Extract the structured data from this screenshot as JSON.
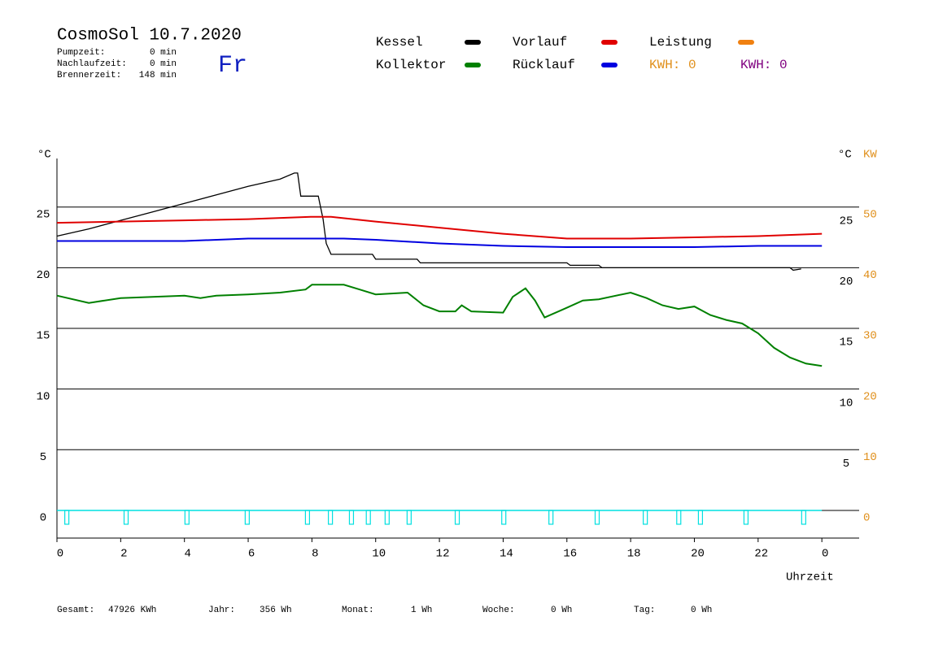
{
  "header": {
    "title": "CosmoSol 10.7.2020",
    "day": "Fr",
    "stats": [
      {
        "label": "Pumpzeit:",
        "value": "0 min"
      },
      {
        "label": "Nachlaufzeit:",
        "value": "0 min"
      },
      {
        "label": "Brennerzeit:",
        "value": "148 min"
      }
    ]
  },
  "chart_data": {
    "type": "line",
    "series": [
      {
        "name": "Kessel",
        "color": "#000000",
        "x": [
          0,
          1,
          2,
          3,
          4,
          5,
          6,
          7,
          7.45,
          7.55,
          7.65,
          8.2,
          8.35,
          8.45,
          8.6,
          9.9,
          10.0,
          11.3,
          11.4,
          16.0,
          16.1,
          17.0,
          17.1,
          23.0,
          23.1,
          23.35
        ],
        "values": [
          22.6,
          23.2,
          23.9,
          24.6,
          25.3,
          26.0,
          26.7,
          27.3,
          27.8,
          27.8,
          25.9,
          25.9,
          24.0,
          22.0,
          21.1,
          21.1,
          20.7,
          20.7,
          20.4,
          20.4,
          20.2,
          20.2,
          20.0,
          20.0,
          19.8,
          19.9
        ]
      },
      {
        "name": "Kollektor",
        "color": "#008000",
        "x": [
          0,
          1,
          2,
          3,
          4,
          4.5,
          5,
          6,
          7,
          7.8,
          8,
          9,
          9.5,
          10,
          11,
          11.5,
          12,
          12.5,
          12.7,
          13,
          14,
          14.3,
          14.7,
          15,
          15.3,
          16,
          16.5,
          17,
          18,
          18.5,
          19,
          19.5,
          20,
          20.5,
          21,
          21.5,
          22,
          22.5,
          23,
          23.5,
          24
        ],
        "values": [
          17.7,
          17.1,
          17.5,
          17.6,
          17.7,
          17.5,
          17.7,
          17.8,
          17.95,
          18.2,
          18.6,
          18.6,
          18.2,
          17.8,
          17.95,
          16.9,
          16.4,
          16.4,
          16.9,
          16.4,
          16.3,
          17.6,
          18.3,
          17.3,
          15.9,
          16.7,
          17.3,
          17.4,
          17.95,
          17.5,
          16.9,
          16.6,
          16.8,
          16.1,
          15.7,
          15.4,
          14.6,
          13.4,
          12.6,
          12.1,
          11.9
        ]
      },
      {
        "name": "Vorlauf",
        "color": "#e00000",
        "x": [
          0,
          2,
          4,
          6,
          8,
          8.6,
          10,
          12,
          14,
          16,
          18,
          20,
          22,
          24
        ],
        "values": [
          23.7,
          23.8,
          23.9,
          24.0,
          24.2,
          24.2,
          23.8,
          23.3,
          22.8,
          22.4,
          22.4,
          22.5,
          22.6,
          22.8
        ]
      },
      {
        "name": "Rücklauf",
        "color": "#0000e0",
        "x": [
          0,
          4,
          6,
          9,
          10,
          12,
          14,
          16,
          18,
          20,
          22,
          24
        ],
        "values": [
          22.2,
          22.2,
          22.4,
          22.4,
          22.3,
          22.0,
          21.8,
          21.7,
          21.7,
          21.7,
          21.8,
          21.8
        ]
      },
      {
        "name": "Leistung",
        "color": "#f08010"
      }
    ],
    "kwh": [
      {
        "label": "KWH: 0",
        "color": "#e0901c"
      },
      {
        "label": "KWH: 0",
        "color": "#800080"
      }
    ],
    "pulses": {
      "color": "#00e0e0",
      "x": [
        0.31,
        2.17,
        4.08,
        5.97,
        7.86,
        8.58,
        9.24,
        9.77,
        10.36,
        11.05,
        12.56,
        14.02,
        15.5,
        16.95,
        18.46,
        19.51,
        20.19,
        21.62,
        23.43
      ]
    },
    "y_unit": "°C",
    "y2_unit_c": "°C",
    "y2_unit": "KW",
    "x_label": "Uhrzeit",
    "xlim": [
      0,
      25.17
    ],
    "xticks": [
      0,
      2,
      4,
      6,
      8,
      10,
      12,
      14,
      16,
      18,
      20,
      22,
      {
        "value": 24,
        "label": "0"
      }
    ],
    "ylim": [
      -2.28,
      29.0
    ],
    "yticks": [
      0,
      5,
      10,
      15,
      20,
      25
    ],
    "right_yticks": [
      5,
      10,
      15,
      20,
      25
    ],
    "y2lim": [
      -4.56,
      58.0
    ],
    "y2ticks": [
      0,
      10,
      20,
      30,
      40,
      50
    ],
    "y2color": "#e0901c",
    "grid": true
  },
  "footer": [
    {
      "label": "Gesamt:",
      "value": "47926 KWh"
    },
    {
      "label": "Jahr:",
      "value": "356 Wh"
    },
    {
      "label": "Monat:",
      "value": "1 Wh"
    },
    {
      "label": "Woche:",
      "value": "0 Wh"
    },
    {
      "label": "Tag:",
      "value": "0 Wh"
    }
  ]
}
